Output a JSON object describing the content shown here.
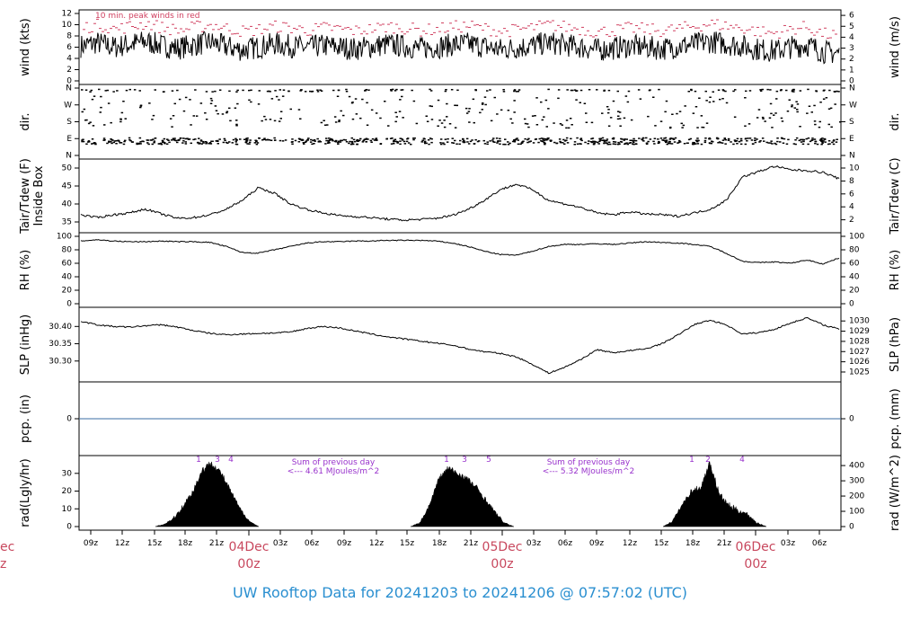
{
  "title": "UW Rooftop Data for 20241203  to  20241206 @ 07:57:02  (UTC)",
  "chart_data": [
    {
      "type": "line",
      "name": "wind",
      "ylabel_left": "wind (kts)",
      "ylabel_right": "wind (m/s)",
      "ylim": [
        0,
        12
      ],
      "yticks_left": [
        "0",
        "2",
        "4",
        "6",
        "8",
        "10",
        "12"
      ],
      "yticks_right": [
        "0",
        "1",
        "2",
        "3",
        "4",
        "5",
        "6"
      ],
      "annotation": "10 min. peak winds in red",
      "series": [
        {
          "values": [
            6.2,
            6.8,
            6.0,
            6.5,
            7.0,
            6.3,
            5.8,
            6.4,
            6.9,
            6.1,
            5.5,
            6.0,
            6.6,
            6.2,
            5.9,
            6.3,
            6.0,
            5.7,
            6.1,
            6.5,
            6.2,
            5.8,
            6.0,
            6.4,
            6.6,
            6.1,
            5.6,
            5.9,
            6.3,
            6.8,
            6.4,
            6.0,
            5.5,
            5.8,
            6.2,
            6.0,
            5.7,
            6.1,
            6.5,
            7.0,
            6.6,
            6.2,
            5.6,
            5.3,
            6.0,
            6.4,
            5.2,
            4.9
          ]
        },
        {
          "values": [
            9.5,
            10.0,
            9.2,
            9.8,
            10.2,
            9.4,
            9.0,
            9.6,
            10.0,
            9.3,
            8.8,
            9.2,
            9.7,
            9.4,
            9.0,
            9.5,
            9.2,
            8.9,
            9.3,
            9.7,
            9.4,
            9.0,
            9.2,
            9.6,
            9.8,
            9.3,
            8.8,
            9.1,
            9.5,
            10.0,
            9.6,
            9.2,
            8.7,
            9.0,
            9.4,
            9.2,
            8.9,
            9.3,
            9.7,
            10.2,
            9.8,
            9.4,
            8.8,
            8.5,
            9.2,
            9.6,
            8.4,
            8.0
          ]
        }
      ]
    },
    {
      "type": "scatter",
      "name": "dir",
      "ylabel_left": "dir.",
      "ylabel_right": "dir.",
      "yticks_left": [
        "N",
        "E",
        "S",
        "W",
        "N"
      ],
      "yticks_right": [
        "N",
        "E",
        "S",
        "W",
        "N"
      ],
      "ylim": [
        0,
        360
      ]
    },
    {
      "type": "line",
      "name": "temperature",
      "ylabel_left": "Tair/Tdew (F)",
      "ylabel_left2": "Inside Box",
      "ylabel_right": "Tair/Tdew (C)",
      "ylim": [
        33,
        51.5
      ],
      "yticks_left": [
        "35",
        "40",
        "45",
        "50"
      ],
      "yticks_right": [
        "2",
        "4",
        "6",
        "8",
        "10"
      ],
      "series": [
        {
          "values": [
            37.0,
            36.2,
            37.0,
            37.5,
            38.6,
            37.2,
            36.0,
            36.2,
            37.0,
            38.5,
            41.0,
            44.5,
            43.0,
            40.0,
            38.5,
            37.5,
            36.8,
            36.5,
            36.2,
            35.8,
            35.5,
            35.7,
            36.0,
            36.8,
            38.5,
            41.0,
            44.0,
            45.5,
            44.0,
            41.0,
            40.0,
            39.0,
            37.5,
            37.0,
            37.8,
            37.2,
            37.0,
            36.6,
            37.5,
            38.5,
            41.0,
            47.5,
            49.0,
            50.5,
            49.5,
            49.3,
            48.8,
            47.0
          ]
        }
      ]
    },
    {
      "type": "line",
      "name": "rh",
      "ylabel_left": "RH (%)",
      "ylabel_right": "RH (%)",
      "ylim": [
        0,
        100
      ],
      "yticks_left": [
        "0",
        "20",
        "40",
        "60",
        "80",
        "100"
      ],
      "yticks_right": [
        "0",
        "20",
        "40",
        "60",
        "80",
        "100"
      ],
      "series": [
        {
          "values": [
            93,
            95,
            93,
            92,
            92,
            93,
            92,
            92,
            91,
            85,
            76,
            75,
            80,
            85,
            90,
            92,
            92,
            93,
            93,
            94,
            94,
            94,
            93,
            90,
            85,
            78,
            73,
            72,
            78,
            85,
            88,
            88,
            89,
            88,
            90,
            92,
            91,
            90,
            88,
            85,
            75,
            63,
            61,
            62,
            60,
            65,
            59,
            68
          ]
        }
      ]
    },
    {
      "type": "line",
      "name": "slp",
      "ylabel_left": "SLP (inHg)",
      "ylabel_right": "SLP (hPa)",
      "ylim": [
        30.25,
        30.445
      ],
      "yticks_left": [
        "30.30",
        "30.35",
        "30.40"
      ],
      "yticks_right": [
        "1025",
        "1026",
        "1027",
        "1028",
        "1029",
        "1030"
      ],
      "series": [
        {
          "values": [
            30.415,
            30.405,
            30.4,
            30.398,
            30.402,
            30.405,
            30.398,
            30.388,
            30.38,
            30.376,
            30.378,
            30.38,
            30.381,
            30.384,
            30.394,
            30.4,
            30.396,
            30.387,
            30.378,
            30.37,
            30.364,
            30.358,
            30.352,
            30.346,
            30.335,
            30.327,
            30.322,
            30.312,
            30.29,
            30.265,
            30.282,
            30.305,
            30.333,
            30.324,
            30.33,
            30.335,
            30.35,
            30.375,
            30.405,
            30.418,
            30.405,
            30.378,
            30.382,
            30.392,
            30.41,
            30.425,
            30.405,
            30.392
          ]
        }
      ]
    },
    {
      "type": "line",
      "name": "precip",
      "ylabel_left": "pcp. (in)",
      "ylabel_right": "pcp. (mm)",
      "yticks_left": [
        "0"
      ],
      "yticks_right": [
        "0"
      ],
      "series": [
        {
          "values": [
            0,
            0
          ]
        }
      ]
    },
    {
      "type": "area",
      "name": "radiation",
      "ylabel_left": "rad(Lgly/hr)",
      "ylabel_right": "rad (W/m^2)",
      "ylim": [
        0,
        38
      ],
      "yticks_left": [
        "0",
        "10",
        "20",
        "30"
      ],
      "yticks_right": [
        "0",
        "100",
        "200",
        "300",
        "400"
      ],
      "hour_marks": [
        "1",
        "3",
        "4",
        "1",
        "3",
        "5",
        "1",
        "2",
        "4"
      ],
      "annotations": [
        {
          "line1": "Sum of previous day",
          "line2": "<--- 4.61 MJoules/m^2"
        },
        {
          "line1": "Sum of previous day",
          "line2": "<--- 5.32 MJoules/m^2"
        }
      ],
      "days": [
        {
          "values": [
            0,
            1.5,
            5,
            12,
            20,
            32,
            36,
            30,
            20,
            10,
            3,
            0
          ]
        },
        {
          "values": [
            0,
            2,
            12,
            27,
            33,
            30,
            27,
            22,
            15,
            8,
            2,
            0
          ]
        },
        {
          "values": [
            0,
            3,
            12,
            20,
            22,
            36,
            18,
            12,
            9,
            7,
            2,
            0
          ]
        }
      ]
    }
  ],
  "x_axis": {
    "ticks": [
      "09z",
      "12z",
      "15z",
      "18z",
      "21z",
      "03z",
      "06z",
      "09z",
      "12z",
      "15z",
      "18z",
      "21z",
      "03z",
      "06z",
      "09z",
      "12z",
      "15z",
      "18z",
      "21z",
      "03z",
      "06z"
    ],
    "day_labels": [
      {
        "date": "04Dec",
        "hour": "00z"
      },
      {
        "date": "05Dec",
        "hour": "00z"
      },
      {
        "date": "06Dec",
        "hour": "00z"
      }
    ],
    "edge_day_label": {
      "date": "ec",
      "hour": "z"
    }
  }
}
